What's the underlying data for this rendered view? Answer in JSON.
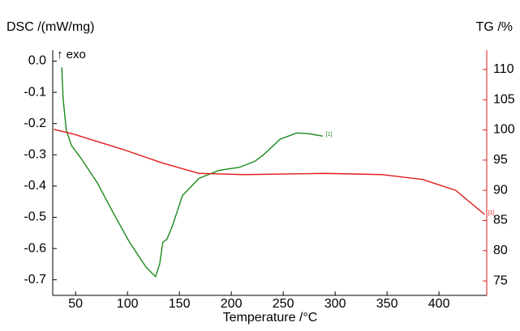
{
  "chart_data": {
    "type": "line",
    "ylabel": "DSC /(mW/mg)",
    "y2label": "TG /%",
    "xlabel": "Temperature /°C",
    "annotation": "↑ exo",
    "xlim": [
      28,
      446
    ],
    "xticks": [
      50,
      100,
      150,
      200,
      250,
      300,
      350,
      400
    ],
    "ylim": [
      -0.75,
      0.035
    ],
    "yticks": [
      {
        "value": 0,
        "label": "0.0"
      },
      -0.1,
      -0.2,
      -0.3,
      -0.4,
      -0.5,
      -0.6,
      -0.7
    ],
    "y2lim": [
      72.6,
      113.2
    ],
    "y2ticks": [
      75,
      80,
      85,
      90,
      95,
      100,
      105,
      110
    ],
    "series": [
      {
        "color": "#1a8a1a",
        "end_label": "[1]",
        "x": [
          36.7,
          38,
          41,
          46,
          55,
          71,
          87,
          102,
          118,
          127,
          131,
          134,
          138,
          143,
          153,
          169,
          188,
          208,
          223,
          231,
          247,
          263,
          274,
          288
        ],
        "values": [
          -0.02,
          -0.12,
          -0.22,
          -0.27,
          -0.31,
          -0.39,
          -0.49,
          -0.58,
          -0.66,
          -0.69,
          -0.65,
          -0.58,
          -0.57,
          -0.53,
          -0.43,
          -0.375,
          -0.35,
          -0.34,
          -0.32,
          -0.3,
          -0.25,
          -0.23,
          -0.232,
          -0.24
        ]
      },
      {
        "color": "#e31a1a",
        "axis": "y2",
        "end_label": "[1]",
        "x": [
          29,
          48,
          95,
          134,
          169,
          212,
          290,
          345,
          384,
          416,
          444
        ],
        "values": [
          100.1,
          99.3,
          96.8,
          94.5,
          92.8,
          92.6,
          92.8,
          92.6,
          91.8,
          90,
          86
        ]
      }
    ]
  }
}
